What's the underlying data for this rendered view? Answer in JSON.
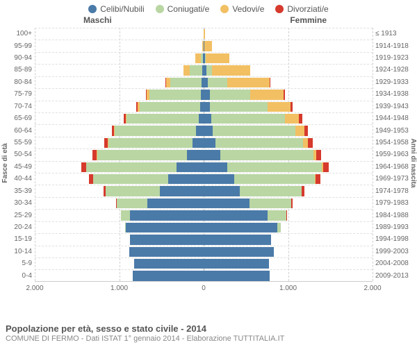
{
  "chart": {
    "type": "population-pyramid",
    "title": "Popolazione per età, sesso e stato civile - 2014",
    "subtitle": "COMUNE DI FERMO - Dati ISTAT 1° gennaio 2014 - Elaborazione TUTTITALIA.IT",
    "legend": [
      {
        "label": "Celibi/Nubili",
        "color": "#4a7aa8"
      },
      {
        "label": "Coniugati/e",
        "color": "#b9d6a3"
      },
      {
        "label": "Vedovi/e",
        "color": "#f2c063"
      },
      {
        "label": "Divorziati/e",
        "color": "#d63a2d"
      }
    ],
    "headers": {
      "male": "Maschi",
      "female": "Femmine"
    },
    "y_left_label": "Fasce di età",
    "y_right_label": "Anni di nascita",
    "x_ticks": [
      "2.000",
      "1.000",
      "0",
      "1.000",
      "2.000"
    ],
    "x_max": 2000,
    "background_color": "#ffffff",
    "grid_color": "#d0d0d0",
    "row_border_color": "#e0e0e0",
    "label_fontsize": 10,
    "rows": [
      {
        "age": "100+",
        "birth": "≤ 1913",
        "m": [
          0,
          0,
          0,
          0
        ],
        "f": [
          0,
          0,
          15,
          0
        ]
      },
      {
        "age": "95-99",
        "birth": "1914-1918",
        "m": [
          0,
          0,
          20,
          0
        ],
        "f": [
          5,
          0,
          90,
          0
        ]
      },
      {
        "age": "90-94",
        "birth": "1919-1923",
        "m": [
          10,
          25,
          60,
          0
        ],
        "f": [
          15,
          10,
          280,
          0
        ]
      },
      {
        "age": "85-89",
        "birth": "1924-1928",
        "m": [
          15,
          150,
          70,
          0
        ],
        "f": [
          30,
          70,
          450,
          0
        ]
      },
      {
        "age": "80-84",
        "birth": "1929-1933",
        "m": [
          25,
          370,
          50,
          5
        ],
        "f": [
          50,
          230,
          500,
          10
        ]
      },
      {
        "age": "75-79",
        "birth": "1934-1938",
        "m": [
          30,
          610,
          35,
          10
        ],
        "f": [
          70,
          480,
          400,
          15
        ]
      },
      {
        "age": "70-74",
        "birth": "1939-1943",
        "m": [
          40,
          720,
          25,
          15
        ],
        "f": [
          75,
          680,
          270,
          25
        ]
      },
      {
        "age": "65-69",
        "birth": "1944-1948",
        "m": [
          60,
          850,
          15,
          25
        ],
        "f": [
          90,
          870,
          170,
          35
        ]
      },
      {
        "age": "60-64",
        "birth": "1949-1953",
        "m": [
          90,
          960,
          10,
          30
        ],
        "f": [
          110,
          980,
          100,
          45
        ]
      },
      {
        "age": "55-59",
        "birth": "1954-1958",
        "m": [
          130,
          1000,
          5,
          40
        ],
        "f": [
          140,
          1040,
          55,
          55
        ]
      },
      {
        "age": "50-54",
        "birth": "1959-1963",
        "m": [
          200,
          1060,
          4,
          50
        ],
        "f": [
          200,
          1100,
          30,
          60
        ]
      },
      {
        "age": "45-49",
        "birth": "1964-1968",
        "m": [
          320,
          1070,
          2,
          55
        ],
        "f": [
          280,
          1120,
          15,
          70
        ]
      },
      {
        "age": "40-44",
        "birth": "1969-1973",
        "m": [
          420,
          890,
          0,
          45
        ],
        "f": [
          360,
          960,
          8,
          55
        ]
      },
      {
        "age": "35-39",
        "birth": "1974-1978",
        "m": [
          520,
          640,
          0,
          25
        ],
        "f": [
          430,
          730,
          4,
          30
        ]
      },
      {
        "age": "30-34",
        "birth": "1979-1983",
        "m": [
          670,
          360,
          0,
          10
        ],
        "f": [
          540,
          500,
          0,
          15
        ]
      },
      {
        "age": "25-29",
        "birth": "1984-1988",
        "m": [
          870,
          110,
          0,
          2
        ],
        "f": [
          760,
          220,
          0,
          5
        ]
      },
      {
        "age": "20-24",
        "birth": "1989-1993",
        "m": [
          920,
          10,
          0,
          0
        ],
        "f": [
          870,
          40,
          0,
          0
        ]
      },
      {
        "age": "15-19",
        "birth": "1994-1998",
        "m": [
          870,
          0,
          0,
          0
        ],
        "f": [
          800,
          0,
          0,
          0
        ]
      },
      {
        "age": "10-14",
        "birth": "1999-2003",
        "m": [
          880,
          0,
          0,
          0
        ],
        "f": [
          830,
          0,
          0,
          0
        ]
      },
      {
        "age": "5-9",
        "birth": "2004-2008",
        "m": [
          820,
          0,
          0,
          0
        ],
        "f": [
          770,
          0,
          0,
          0
        ]
      },
      {
        "age": "0-4",
        "birth": "2009-2013",
        "m": [
          840,
          0,
          0,
          0
        ],
        "f": [
          780,
          0,
          0,
          0
        ]
      }
    ]
  }
}
